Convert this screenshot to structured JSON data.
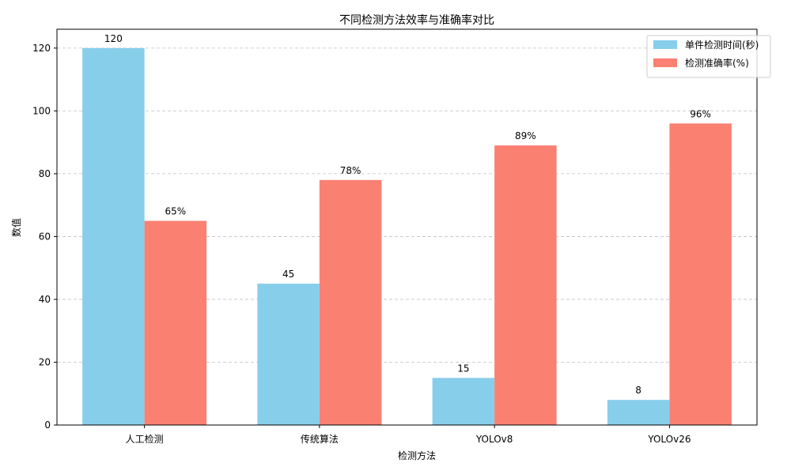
{
  "chart_data": {
    "type": "bar",
    "title": "不同检测方法效率与准确率对比",
    "xlabel": "检测方法",
    "ylabel": "数值",
    "categories": [
      "人工检测",
      "传统算法",
      "YOLOv8",
      "YOLOv26"
    ],
    "series": [
      {
        "name": "单件检测时间(秒)",
        "values": [
          120,
          45,
          15,
          8
        ],
        "labels": [
          "120",
          "45",
          "15",
          "8"
        ],
        "color": "#87CEEB"
      },
      {
        "name": "检测准确率(%)",
        "values": [
          65,
          78,
          89,
          96
        ],
        "labels": [
          "65%",
          "78%",
          "89%",
          "96%"
        ],
        "color": "#FA8072"
      }
    ],
    "ylim": [
      0,
      126
    ],
    "yticks": [
      0,
      20,
      40,
      60,
      80,
      100,
      120
    ],
    "grid": "y-dashed",
    "legend_position": "top-right"
  }
}
